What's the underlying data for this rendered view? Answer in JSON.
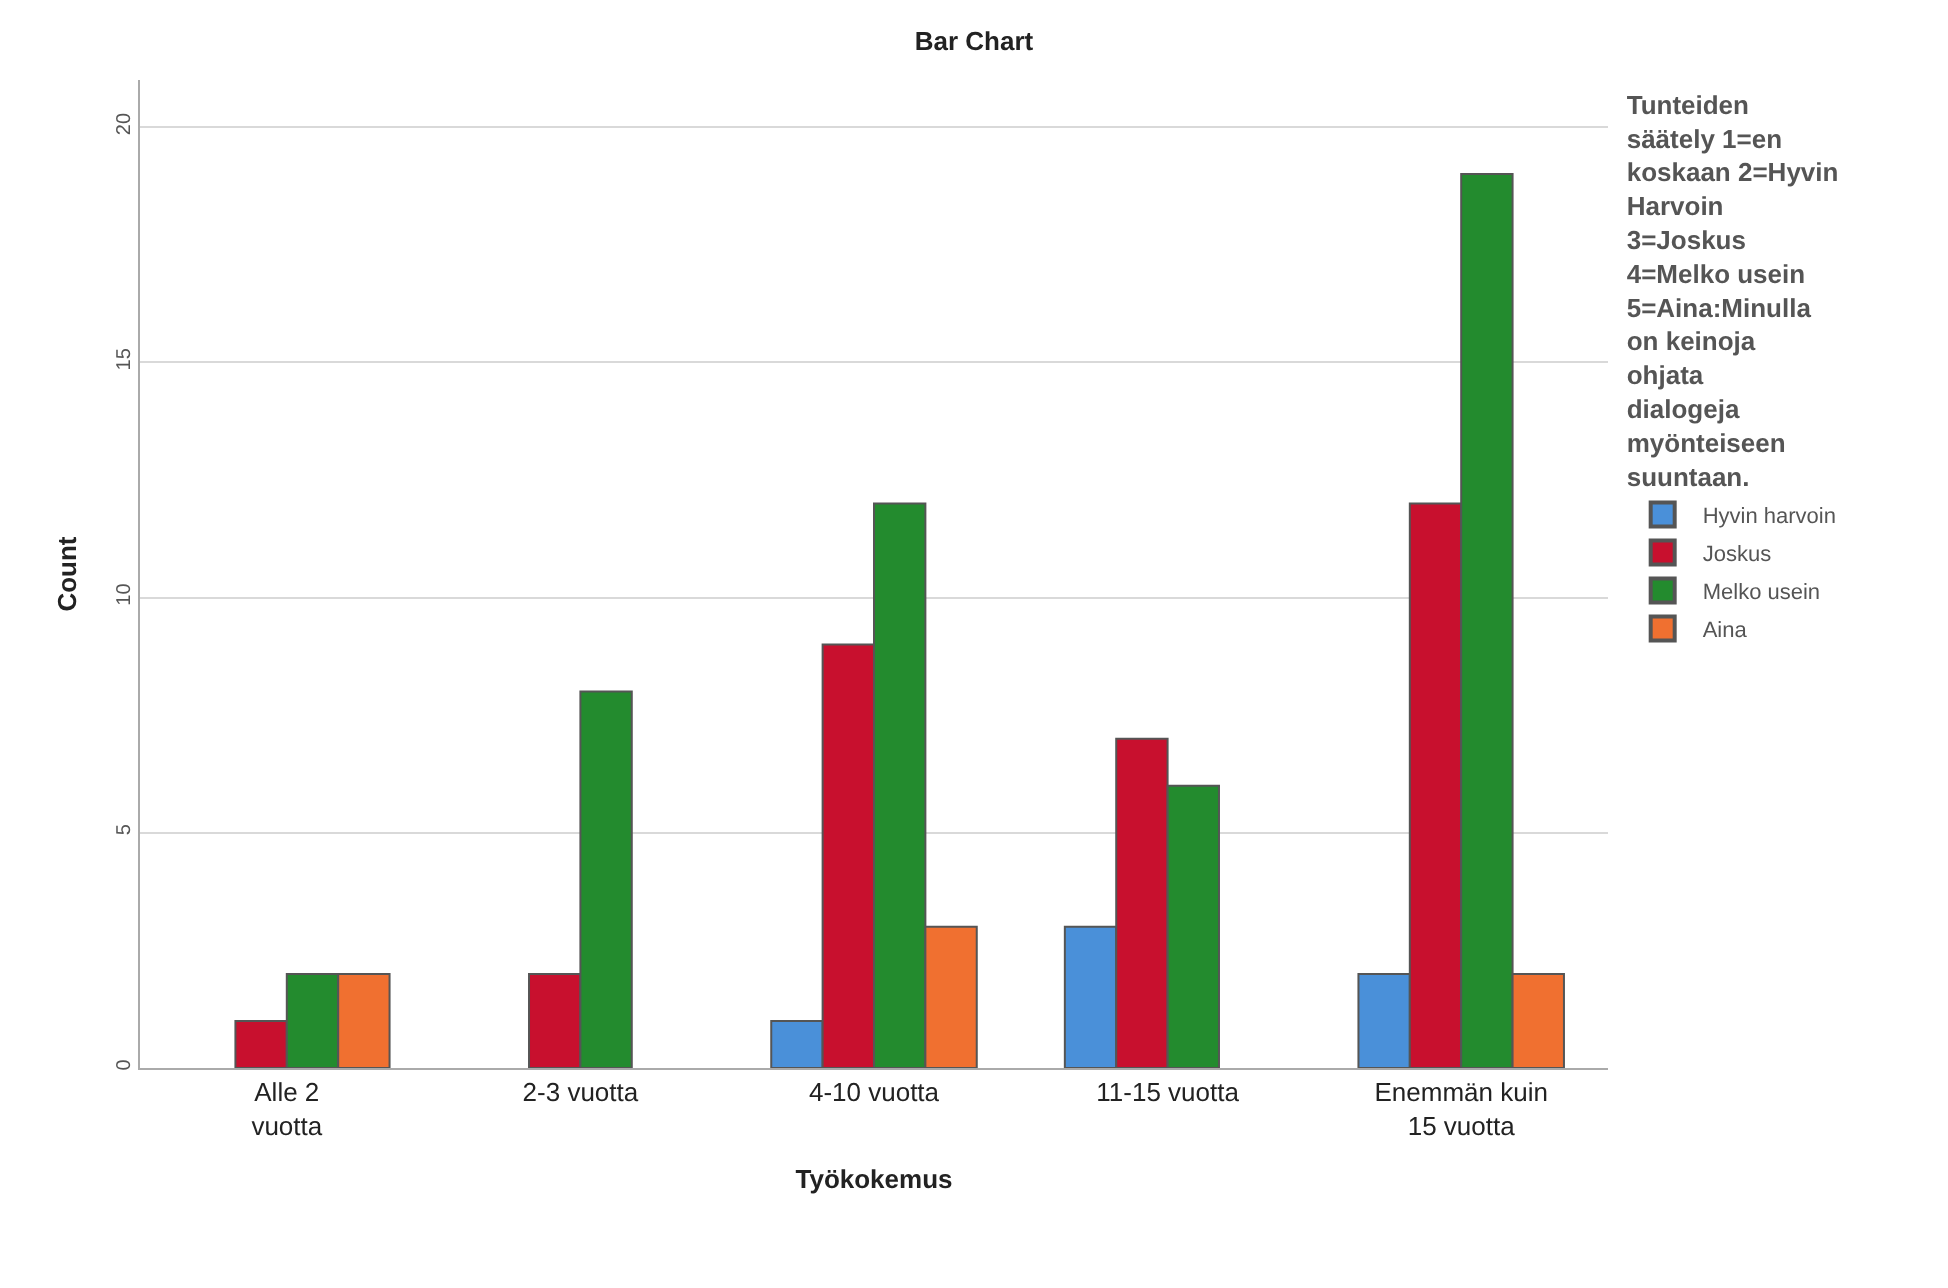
{
  "chart_data": {
    "type": "bar",
    "title": "Bar Chart",
    "xlabel": "Työkokemus",
    "ylabel": "Count",
    "legend_title": "Tunteiden säätely 1=en koskaan 2=Hyvin Harvoin 3=Joskus 4=Melko usein 5=Aina:Minulla on keinoja ohjata dialogeja myönteiseen suuntaan.",
    "categories": [
      "Alle 2 vuotta",
      "2-3 vuotta",
      "4-10 vuotta",
      "11-15 vuotta",
      "Enemmän kuin 15 vuotta"
    ],
    "series": [
      {
        "name": "Hyvin harvoin",
        "color": "#4a90d9",
        "values": [
          null,
          null,
          1,
          3,
          2
        ]
      },
      {
        "name": "Joskus",
        "color": "#c8102e",
        "values": [
          1,
          2,
          9,
          7,
          12
        ]
      },
      {
        "name": "Melko usein",
        "color": "#238b2e",
        "values": [
          2,
          8,
          12,
          6,
          19
        ]
      },
      {
        "name": "Aina",
        "color": "#f07030",
        "values": [
          2,
          null,
          3,
          null,
          2
        ]
      }
    ],
    "ylim": [
      0,
      21
    ],
    "yticks": [
      0,
      5,
      10,
      15,
      20
    ],
    "grid": "y",
    "legend": "right"
  }
}
